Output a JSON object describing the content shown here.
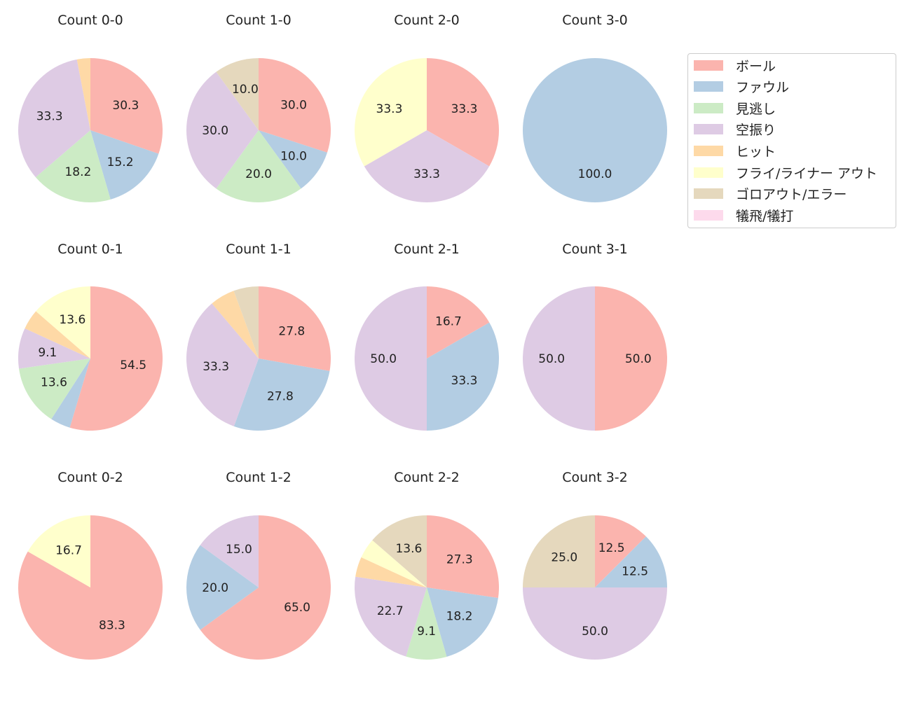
{
  "chart_data": {
    "type": "pie",
    "categories": [
      "ボール",
      "ファウル",
      "見逃し",
      "空振り",
      "ヒット",
      "フライ/ライナー アウト",
      "ゴロアウト/エラー",
      "犠飛/犠打"
    ],
    "colors": [
      "#fbb4ae",
      "#b3cde3",
      "#ccebc5",
      "#decbe4",
      "#fed9a6",
      "#ffffcc",
      "#e5d8bd",
      "#fddaec"
    ],
    "legend_position": "right",
    "charts": [
      {
        "title": "Count 0-0",
        "values": [
          30.3,
          15.2,
          18.2,
          33.3,
          3.0,
          0,
          0,
          0
        ]
      },
      {
        "title": "Count 1-0",
        "values": [
          30.0,
          10.0,
          20.0,
          30.0,
          0,
          0,
          10.0,
          0
        ]
      },
      {
        "title": "Count 2-0",
        "values": [
          33.3,
          0,
          0,
          33.3,
          0,
          33.3,
          0,
          0
        ]
      },
      {
        "title": "Count 3-0",
        "values": [
          0,
          100.0,
          0,
          0,
          0,
          0,
          0,
          0
        ]
      },
      {
        "title": "Count 0-1",
        "values": [
          54.5,
          4.5,
          13.6,
          9.1,
          4.5,
          13.6,
          0,
          0
        ]
      },
      {
        "title": "Count 1-1",
        "values": [
          27.8,
          27.8,
          0,
          33.3,
          5.6,
          0,
          5.6,
          0
        ]
      },
      {
        "title": "Count 2-1",
        "values": [
          16.7,
          33.3,
          0,
          50.0,
          0,
          0,
          0,
          0
        ]
      },
      {
        "title": "Count 3-1",
        "values": [
          50.0,
          0,
          0,
          50.0,
          0,
          0,
          0,
          0
        ]
      },
      {
        "title": "Count 0-2",
        "values": [
          83.3,
          0,
          0,
          0,
          0,
          16.7,
          0,
          0
        ]
      },
      {
        "title": "Count 1-2",
        "values": [
          65.0,
          20.0,
          0,
          15.0,
          0,
          0,
          0,
          0
        ]
      },
      {
        "title": "Count 2-2",
        "values": [
          27.3,
          18.2,
          9.1,
          22.7,
          4.5,
          4.5,
          13.6,
          0
        ]
      },
      {
        "title": "Count 3-2",
        "values": [
          12.5,
          12.5,
          0,
          50.0,
          0,
          0,
          25.0,
          0
        ]
      }
    ]
  }
}
